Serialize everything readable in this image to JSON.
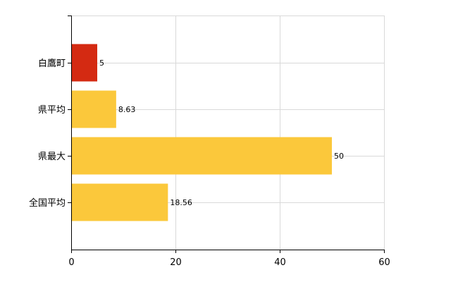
{
  "chart_data": {
    "type": "bar",
    "orientation": "horizontal",
    "categories": [
      "白鷹町",
      "県平均",
      "県最大",
      "全国平均"
    ],
    "values": [
      5,
      8.63,
      50,
      18.56
    ],
    "value_labels": [
      "5",
      "8.63",
      "50",
      "18.56"
    ],
    "bar_colors": [
      "#d42a12",
      "#fbc83b",
      "#fbc83b",
      "#fbc83b"
    ],
    "highlight_color": "#d42a12",
    "bar_color": "#fbc83b",
    "xlim": [
      0,
      60
    ],
    "x_ticks": [
      0,
      20,
      40,
      60
    ],
    "x_tick_labels": [
      "0",
      "20",
      "40",
      "60"
    ],
    "grid": true,
    "legend": false
  }
}
